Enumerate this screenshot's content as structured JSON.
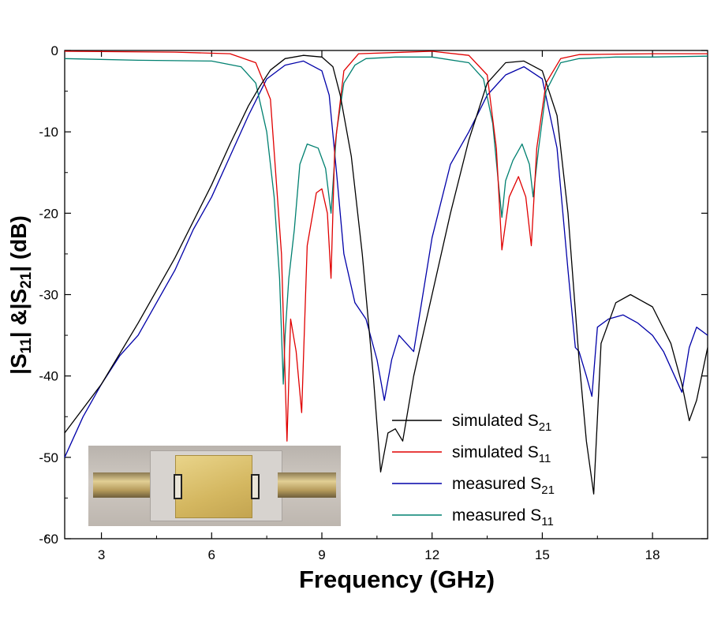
{
  "chart_data": {
    "type": "line",
    "xlabel": "Frequency (GHz)",
    "ylabel": "|S11| &|S21| (dB)",
    "xlim": [
      2,
      19.5
    ],
    "ylim": [
      -60,
      0
    ],
    "xticks": [
      3,
      6,
      9,
      12,
      15,
      18
    ],
    "yticks": [
      0,
      -10,
      -20,
      -30,
      -40,
      -50,
      -60
    ],
    "grid": false,
    "legend_position": "bottom-right",
    "series": [
      {
        "name": "simulated S21",
        "color": "#000000",
        "x": [
          2.0,
          3.0,
          4.0,
          5.0,
          6.0,
          6.5,
          7.0,
          7.3,
          7.6,
          8.0,
          8.5,
          9.0,
          9.3,
          9.5,
          9.8,
          10.1,
          10.4,
          10.6,
          10.8,
          11.0,
          11.2,
          11.5,
          12.0,
          12.5,
          13.0,
          13.5,
          14.0,
          14.5,
          15.0,
          15.4,
          15.7,
          16.0,
          16.2,
          16.4,
          16.6,
          17.0,
          17.4,
          18.0,
          18.5,
          18.8,
          19.0,
          19.2,
          19.5
        ],
        "y": [
          -47.0,
          -41.0,
          -33.5,
          -25.5,
          -16.5,
          -11.5,
          -6.8,
          -4.5,
          -2.4,
          -1.0,
          -0.6,
          -0.8,
          -2.0,
          -5.5,
          -13.0,
          -25.0,
          -40.0,
          -51.8,
          -47.0,
          -46.5,
          -48.0,
          -40.0,
          -30.0,
          -20.0,
          -11.0,
          -4.0,
          -1.5,
          -1.3,
          -2.5,
          -8.0,
          -20.0,
          -38.0,
          -48.0,
          -54.5,
          -36.0,
          -31.0,
          -30.0,
          -31.5,
          -36.0,
          -41.0,
          -45.5,
          -43.0,
          -36.5
        ]
      },
      {
        "name": "simulated S11",
        "color": "#e00000",
        "x": [
          2.0,
          5.0,
          6.5,
          7.2,
          7.6,
          7.9,
          8.05,
          8.15,
          8.3,
          8.45,
          8.6,
          8.85,
          9.0,
          9.15,
          9.25,
          9.35,
          9.6,
          10.0,
          12.0,
          13.0,
          13.5,
          13.75,
          13.9,
          14.1,
          14.35,
          14.55,
          14.7,
          14.85,
          15.1,
          15.5,
          16.0,
          18.0,
          19.5
        ],
        "y": [
          -0.1,
          -0.2,
          -0.4,
          -1.5,
          -6.0,
          -25.0,
          -48.0,
          -33.0,
          -37.0,
          -44.5,
          -24.0,
          -17.5,
          -17.0,
          -20.0,
          -28.0,
          -12.0,
          -2.5,
          -0.4,
          -0.1,
          -0.6,
          -3.0,
          -12.0,
          -24.5,
          -18.0,
          -15.5,
          -18.0,
          -24.0,
          -12.0,
          -4.0,
          -1.0,
          -0.5,
          -0.4,
          -0.4
        ]
      },
      {
        "name": "measured S21",
        "color": "#0000a8",
        "x": [
          2.0,
          2.5,
          3.0,
          3.5,
          4.0,
          4.5,
          5.0,
          5.5,
          6.0,
          6.5,
          7.0,
          7.5,
          8.0,
          8.5,
          9.0,
          9.2,
          9.4,
          9.6,
          9.9,
          10.2,
          10.5,
          10.7,
          10.9,
          11.1,
          11.5,
          12.0,
          12.5,
          13.0,
          13.5,
          14.0,
          14.5,
          15.0,
          15.4,
          15.7,
          15.9,
          16.0,
          16.2,
          16.35,
          16.5,
          16.8,
          17.2,
          17.6,
          18.0,
          18.3,
          18.6,
          18.8,
          19.0,
          19.2,
          19.5
        ],
        "y": [
          -50.0,
          -45.0,
          -41.0,
          -37.5,
          -35.0,
          -31.0,
          -27.0,
          -22.0,
          -18.0,
          -13.0,
          -8.0,
          -3.5,
          -1.8,
          -1.3,
          -2.5,
          -5.5,
          -15.0,
          -25.0,
          -31.0,
          -33.0,
          -38.0,
          -43.0,
          -38.0,
          -35.0,
          -37.0,
          -23.0,
          -14.0,
          -10.0,
          -5.5,
          -3.0,
          -2.0,
          -3.5,
          -12.0,
          -27.0,
          -36.5,
          -37.0,
          -40.0,
          -42.5,
          -34.0,
          -33.0,
          -32.5,
          -33.5,
          -35.0,
          -37.0,
          -40.0,
          -42.0,
          -36.5,
          -34.0,
          -35.0
        ]
      },
      {
        "name": "measured S11",
        "color": "#008070",
        "x": [
          2.0,
          4.0,
          6.0,
          6.8,
          7.2,
          7.5,
          7.7,
          7.85,
          7.95,
          8.0,
          8.1,
          8.25,
          8.4,
          8.6,
          8.9,
          9.1,
          9.25,
          9.4,
          9.6,
          9.9,
          10.2,
          11.0,
          12.0,
          13.0,
          13.4,
          13.65,
          13.8,
          13.9,
          14.0,
          14.2,
          14.45,
          14.65,
          14.75,
          14.9,
          15.1,
          15.5,
          16.0,
          17.0,
          18.0,
          19.5
        ],
        "y": [
          -1.0,
          -1.2,
          -1.3,
          -2.0,
          -4.0,
          -10.0,
          -18.0,
          -28.0,
          -41.0,
          -35.0,
          -28.0,
          -22.0,
          -14.0,
          -11.5,
          -12.0,
          -14.5,
          -20.0,
          -10.0,
          -4.0,
          -1.8,
          -1.0,
          -0.8,
          -0.8,
          -1.5,
          -3.5,
          -9.0,
          -16.0,
          -20.5,
          -16.0,
          -13.5,
          -11.5,
          -14.0,
          -18.0,
          -12.0,
          -5.0,
          -1.5,
          -1.0,
          -0.8,
          -0.8,
          -0.7
        ]
      }
    ]
  },
  "legend": [
    {
      "label": "simulated S",
      "sub": "21"
    },
    {
      "label": "simulated S",
      "sub": "11"
    },
    {
      "label": "measured S",
      "sub": "21"
    },
    {
      "label": "measured S",
      "sub": "11"
    }
  ],
  "ylabel_parts": {
    "a": "|S",
    "a_sub": "11",
    "b": "| &|S",
    "b_sub": "21",
    "c": "| (dB)"
  },
  "inset": {
    "description_icon": "filter-photo"
  }
}
